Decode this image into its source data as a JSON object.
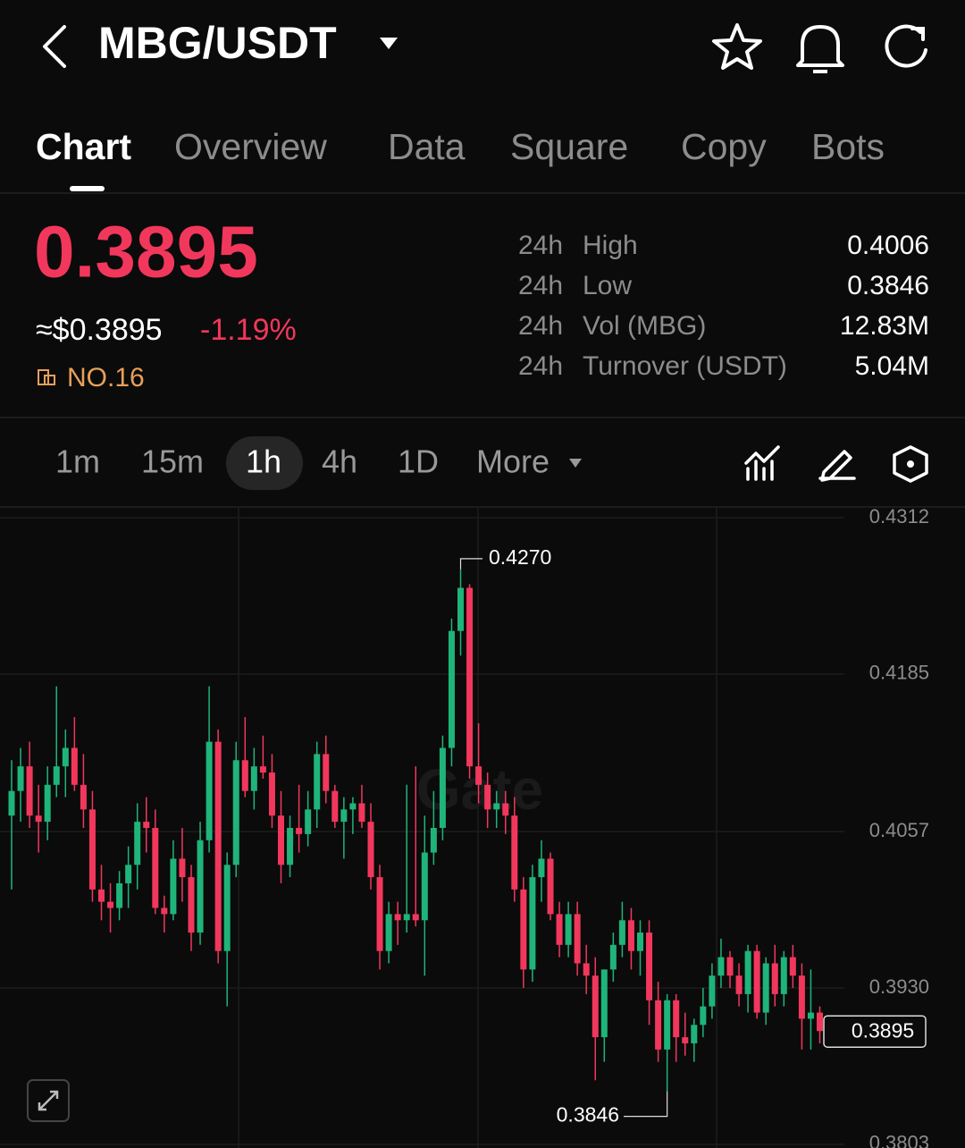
{
  "header": {
    "title": "MBG/USDT"
  },
  "tabs": [
    "Chart",
    "Overview",
    "Data",
    "Square",
    "Copy",
    "Bots"
  ],
  "ticker": {
    "price": "0.3895",
    "usd_price": "≈$0.3895",
    "change": "-1.19%",
    "rank": "NO.16",
    "stats": [
      {
        "period": "24h",
        "name": "High",
        "value": "0.4006"
      },
      {
        "period": "24h",
        "name": "Low",
        "value": "0.3846"
      },
      {
        "period": "24h",
        "name": "Vol (MBG)",
        "value": "12.83M"
      },
      {
        "period": "24h",
        "name": "Turnover (USDT)",
        "value": "5.04M"
      }
    ]
  },
  "intervals": [
    "1m",
    "15m",
    "1h",
    "4h",
    "1D",
    "More"
  ],
  "chart_data": {
    "type": "candlestick",
    "watermark": "Gate",
    "up_color": "#1fb47a",
    "down_color": "#f2375c",
    "grid": true,
    "ylim": [
      0.38,
      0.432
    ],
    "yticks": [
      0.4312,
      0.4185,
      0.4057,
      {
        "value": 0.393,
        "label": "0.3930"
      },
      0.3803
    ],
    "open": [
      0.407,
      0.409,
      0.411,
      0.407,
      0.4065,
      0.4095,
      0.411,
      0.4125,
      0.4095,
      0.4075,
      0.401,
      0.4,
      0.3995,
      0.4015,
      0.403,
      0.4065,
      0.406,
      0.3995,
      0.399,
      0.4035,
      0.402,
      0.3975,
      0.405,
      0.413,
      0.396,
      0.403,
      0.4115,
      0.409,
      0.411,
      0.4105,
      0.407,
      0.403,
      0.406,
      0.4055,
      0.4075,
      0.412,
      0.409,
      0.4065,
      0.4075,
      0.408,
      0.4065,
      0.402,
      0.396,
      0.399,
      0.3985,
      0.399,
      0.3985,
      0.404,
      0.406,
      0.4125,
      0.422,
      0.4255,
      0.411,
      0.4095,
      0.4075,
      0.408,
      0.407,
      0.401,
      0.3945,
      0.402,
      0.4035,
      0.399,
      0.3965,
      0.399,
      0.395,
      0.394,
      0.389,
      0.3945,
      0.3965,
      0.3985,
      0.396,
      0.3975,
      0.392,
      0.388,
      0.392,
      0.389,
      0.3885,
      0.39,
      0.3915,
      0.394,
      0.3955,
      0.394,
      0.3925,
      0.396,
      0.391,
      0.395,
      0.3925,
      0.3955,
      0.394,
      0.3905,
      0.391
    ],
    "high": [
      0.4115,
      0.4125,
      0.413,
      0.4095,
      0.411,
      0.4175,
      0.414,
      0.415,
      0.412,
      0.409,
      0.403,
      0.4015,
      0.4025,
      0.4045,
      0.408,
      0.4085,
      0.4075,
      0.4005,
      0.405,
      0.406,
      0.403,
      0.4065,
      0.4175,
      0.414,
      0.404,
      0.413,
      0.415,
      0.4125,
      0.4135,
      0.412,
      0.409,
      0.407,
      0.4095,
      0.409,
      0.413,
      0.4135,
      0.4095,
      0.4085,
      0.4085,
      0.4095,
      0.408,
      0.403,
      0.4,
      0.4,
      0.4095,
      0.411,
      0.407,
      0.409,
      0.4135,
      0.423,
      0.427,
      0.4258,
      0.4145,
      0.4105,
      0.409,
      0.409,
      0.4085,
      0.402,
      0.403,
      0.405,
      0.404,
      0.4,
      0.4,
      0.4,
      0.3965,
      0.3955,
      0.3945,
      0.3975,
      0.4,
      0.3995,
      0.3985,
      0.3985,
      0.3935,
      0.3925,
      0.3925,
      0.391,
      0.3905,
      0.393,
      0.395,
      0.397,
      0.396,
      0.395,
      0.3965,
      0.3965,
      0.3955,
      0.3965,
      0.396,
      0.3965,
      0.395,
      0.3945,
      0.3915
    ],
    "low": [
      0.401,
      0.4065,
      0.406,
      0.404,
      0.405,
      0.4085,
      0.4085,
      0.409,
      0.406,
      0.4,
      0.3985,
      0.3975,
      0.3985,
      0.3995,
      0.401,
      0.404,
      0.399,
      0.3975,
      0.3985,
      0.4,
      0.396,
      0.3965,
      0.404,
      0.395,
      0.3915,
      0.402,
      0.4085,
      0.4075,
      0.41,
      0.406,
      0.4015,
      0.402,
      0.404,
      0.4045,
      0.406,
      0.408,
      0.406,
      0.4035,
      0.4055,
      0.406,
      0.401,
      0.3945,
      0.395,
      0.3965,
      0.3975,
      0.398,
      0.394,
      0.403,
      0.405,
      0.411,
      0.42,
      0.41,
      0.408,
      0.406,
      0.406,
      0.4055,
      0.4,
      0.393,
      0.3935,
      0.4,
      0.3985,
      0.3955,
      0.3955,
      0.394,
      0.3925,
      0.3855,
      0.387,
      0.3935,
      0.3955,
      0.3945,
      0.394,
      0.39,
      0.387,
      0.3846,
      0.387,
      0.3875,
      0.387,
      0.389,
      0.3905,
      0.393,
      0.393,
      0.3915,
      0.391,
      0.3905,
      0.39,
      0.3915,
      0.3915,
      0.393,
      0.388,
      0.388,
      0.3885
    ],
    "close": [
      0.409,
      0.411,
      0.407,
      0.4065,
      0.4095,
      0.411,
      0.4125,
      0.4095,
      0.4075,
      0.401,
      0.4,
      0.3995,
      0.4015,
      0.403,
      0.4065,
      0.406,
      0.3995,
      0.399,
      0.4035,
      0.402,
      0.3975,
      0.405,
      0.413,
      0.396,
      0.403,
      0.4115,
      0.409,
      0.411,
      0.4105,
      0.407,
      0.403,
      0.406,
      0.4055,
      0.4075,
      0.412,
      0.409,
      0.4065,
      0.4075,
      0.408,
      0.4065,
      0.402,
      0.396,
      0.399,
      0.3985,
      0.399,
      0.3985,
      0.404,
      0.406,
      0.4125,
      0.422,
      0.4255,
      0.411,
      0.4095,
      0.4075,
      0.408,
      0.407,
      0.401,
      0.3945,
      0.402,
      0.4035,
      0.399,
      0.3965,
      0.399,
      0.395,
      0.394,
      0.389,
      0.3945,
      0.3965,
      0.3985,
      0.396,
      0.3975,
      0.392,
      0.388,
      0.392,
      0.389,
      0.3885,
      0.39,
      0.3915,
      0.394,
      0.3955,
      0.394,
      0.3925,
      0.396,
      0.391,
      0.395,
      0.3925,
      0.3955,
      0.394,
      0.3905,
      0.391,
      0.3895
    ],
    "high_label": {
      "value": 0.427,
      "label": "0.4270"
    },
    "low_label": {
      "value": 0.3846,
      "label": "0.3846"
    },
    "last_price": {
      "value": 0.3895,
      "label": "0.3895"
    }
  }
}
